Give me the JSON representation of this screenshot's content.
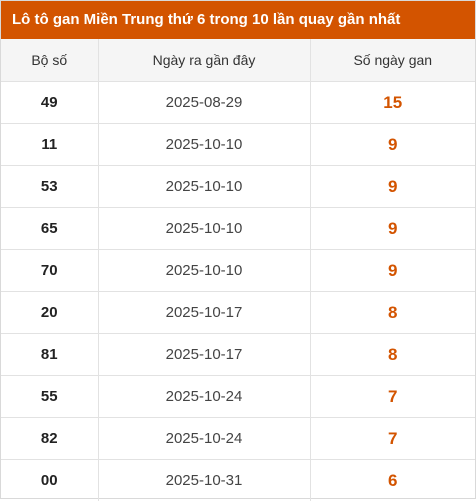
{
  "title": "Lô tô gan Miền Trung thứ 6 trong 10 lần quay gần nhất",
  "accent_color": "#d35400",
  "table": {
    "headers": [
      "Bộ số",
      "Ngày ra gần đây",
      "Số ngày gan"
    ],
    "rows": [
      {
        "number": "49",
        "last_date": "2025-08-29",
        "days": "15"
      },
      {
        "number": "11",
        "last_date": "2025-10-10",
        "days": "9"
      },
      {
        "number": "53",
        "last_date": "2025-10-10",
        "days": "9"
      },
      {
        "number": "65",
        "last_date": "2025-10-10",
        "days": "9"
      },
      {
        "number": "70",
        "last_date": "2025-10-10",
        "days": "9"
      },
      {
        "number": "20",
        "last_date": "2025-10-17",
        "days": "8"
      },
      {
        "number": "81",
        "last_date": "2025-10-17",
        "days": "8"
      },
      {
        "number": "55",
        "last_date": "2025-10-24",
        "days": "7"
      },
      {
        "number": "82",
        "last_date": "2025-10-24",
        "days": "7"
      },
      {
        "number": "00",
        "last_date": "2025-10-31",
        "days": "6"
      }
    ]
  }
}
